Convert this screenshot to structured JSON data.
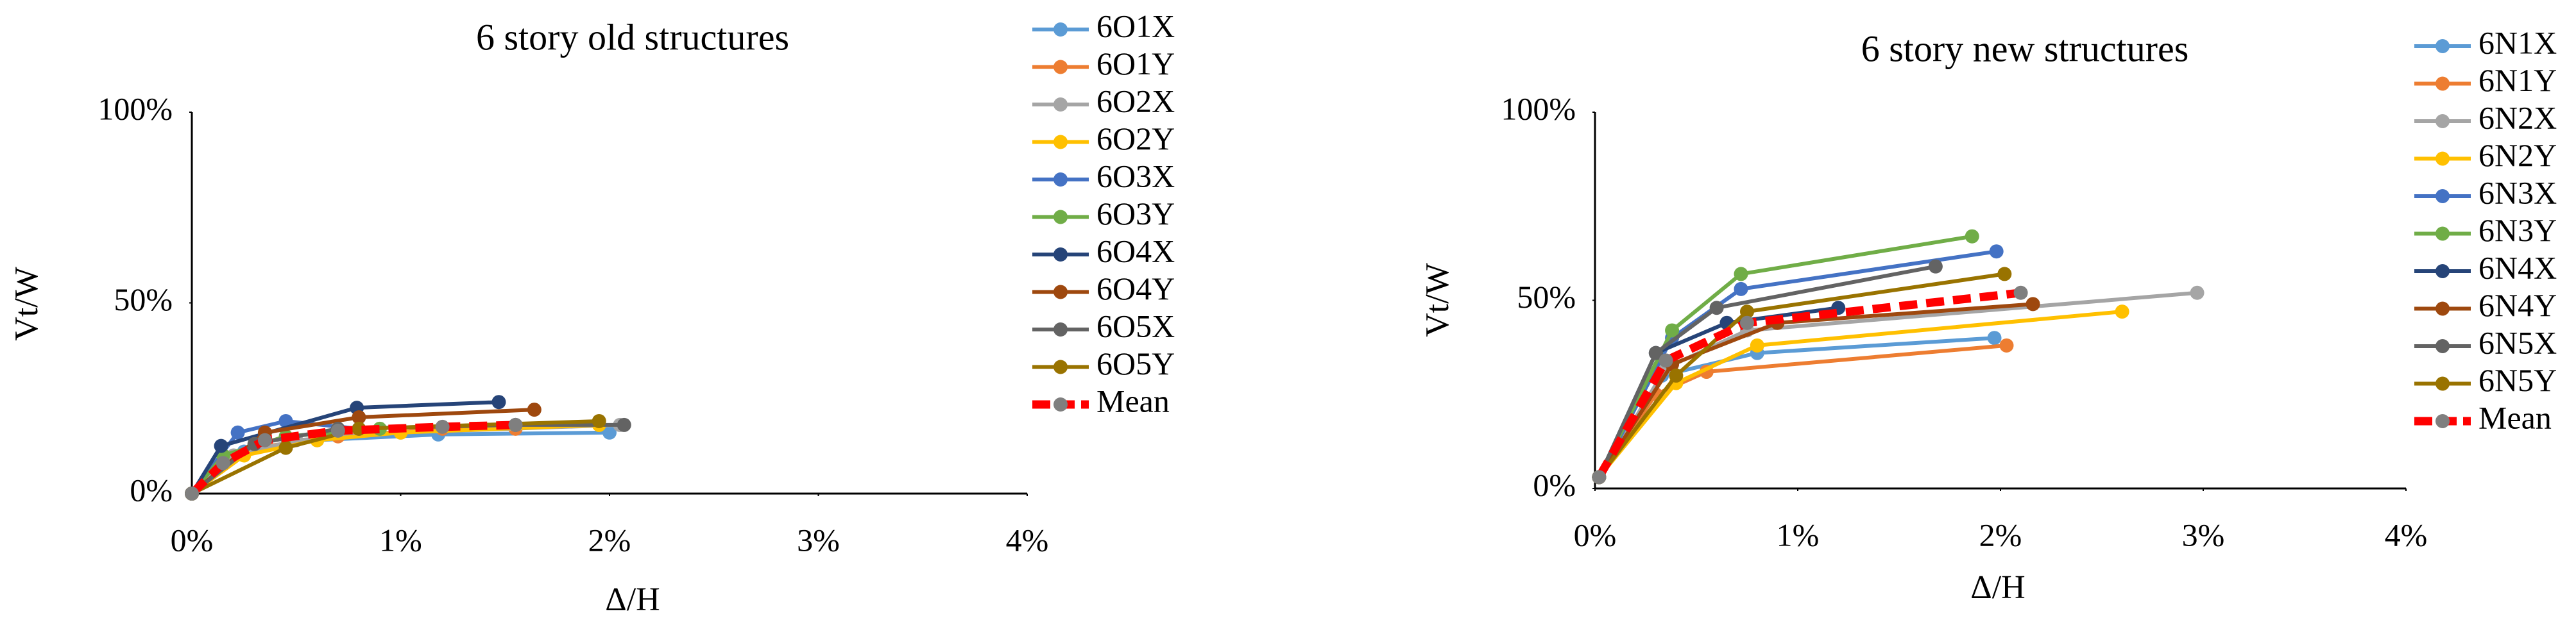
{
  "chart_data": [
    {
      "type": "line",
      "title": "6 story old structures",
      "x_label": "Δ/H",
      "y_label": "Vt/W",
      "xlim": [
        0,
        4
      ],
      "xticks": [
        {
          "value": 0,
          "label": "0%"
        },
        {
          "value": 1,
          "label": "1%"
        },
        {
          "value": 2,
          "label": "2%"
        },
        {
          "value": 3,
          "label": "3%"
        },
        {
          "value": 4,
          "label": "4%"
        }
      ],
      "ylim": [
        0,
        100
      ],
      "yticks": [
        {
          "value": 0,
          "label": "0%"
        },
        {
          "value": 50,
          "label": "50%"
        },
        {
          "value": 100,
          "label": "100%"
        }
      ],
      "legend": "right",
      "series": [
        {
          "name": "6O1X",
          "color": "#5b9bd5",
          "x": [
            0,
            0.25,
            0.6,
            1.18,
            2.0
          ],
          "values": [
            0,
            11,
            14,
            15.5,
            16
          ]
        },
        {
          "name": "6O1Y",
          "color": "#ed7d31",
          "x": [
            0,
            0.3,
            0.7,
            1.2,
            1.55
          ],
          "values": [
            0,
            12,
            15,
            17,
            17
          ]
        },
        {
          "name": "6O2X",
          "color": "#a5a5a5",
          "x": [
            0,
            0.2,
            0.5,
            1.0,
            2.05
          ],
          "values": [
            0,
            10,
            14,
            16,
            18
          ]
        },
        {
          "name": "6O2Y",
          "color": "#ffc000",
          "x": [
            0,
            0.25,
            0.6,
            1.0,
            1.95
          ],
          "values": [
            0,
            10,
            14,
            16,
            18
          ]
        },
        {
          "name": "6O3X",
          "color": "#4472c4",
          "x": [
            0,
            0.22,
            0.45,
            0.8
          ],
          "values": [
            0,
            16,
            19,
            17
          ]
        },
        {
          "name": "6O3Y",
          "color": "#70ad47",
          "x": [
            0,
            0.15,
            0.45,
            0.9
          ],
          "values": [
            0,
            10,
            15,
            17
          ]
        },
        {
          "name": "6O4X",
          "color": "#264478",
          "x": [
            0,
            0.14,
            0.79,
            1.47
          ],
          "values": [
            0,
            12.5,
            22.5,
            24
          ]
        },
        {
          "name": "6O4Y",
          "color": "#9e480e",
          "x": [
            0,
            0.35,
            0.8,
            1.64
          ],
          "values": [
            0,
            16,
            20,
            22
          ]
        },
        {
          "name": "6O5X",
          "color": "#636363",
          "x": [
            0,
            0.3,
            0.7,
            1.55,
            2.07
          ],
          "values": [
            0,
            13,
            17,
            18,
            18
          ]
        },
        {
          "name": "6O5Y",
          "color": "#997300",
          "x": [
            0,
            0.45,
            0.8,
            1.95
          ],
          "values": [
            0,
            12,
            17,
            19
          ]
        },
        {
          "name": "Mean",
          "color": "#ff0000",
          "marker_color": "#7f7f7f",
          "dashed": true,
          "x": [
            0,
            0.15,
            0.35,
            0.7,
            1.2,
            1.55
          ],
          "values": [
            0,
            8,
            14,
            16.5,
            17.5,
            18
          ]
        }
      ]
    },
    {
      "type": "line",
      "title": "6 story new structures",
      "x_label": "Δ/H",
      "y_label": "Vt/W",
      "xlim": [
        0,
        4
      ],
      "xticks": [
        {
          "value": 0,
          "label": "0%"
        },
        {
          "value": 1,
          "label": "1%"
        },
        {
          "value": 2,
          "label": "2%"
        },
        {
          "value": 3,
          "label": "3%"
        },
        {
          "value": 4,
          "label": "4%"
        }
      ],
      "ylim": [
        0,
        100
      ],
      "yticks": [
        {
          "value": 0,
          "label": "0%"
        },
        {
          "value": 50,
          "label": "50%"
        },
        {
          "value": 100,
          "label": "100%"
        }
      ],
      "legend": "right",
      "series": [
        {
          "name": "6N1X",
          "color": "#5b9bd5",
          "x": [
            0.02,
            0.33,
            0.8,
            1.97
          ],
          "values": [
            3,
            30,
            36,
            40
          ]
        },
        {
          "name": "6N1Y",
          "color": "#ed7d31",
          "x": [
            0.02,
            0.3,
            0.55,
            2.03
          ],
          "values": [
            3,
            25,
            31,
            38
          ]
        },
        {
          "name": "6N2X",
          "color": "#a5a5a5",
          "x": [
            0.02,
            0.35,
            0.75,
            2.97
          ],
          "values": [
            3,
            32,
            42,
            52
          ]
        },
        {
          "name": "6N2Y",
          "color": "#ffc000",
          "x": [
            0.02,
            0.4,
            0.8,
            2.6
          ],
          "values": [
            3,
            28,
            38,
            47
          ]
        },
        {
          "name": "6N3X",
          "color": "#4472c4",
          "x": [
            0.02,
            0.38,
            0.72,
            1.98
          ],
          "values": [
            3,
            40,
            53,
            63
          ]
        },
        {
          "name": "6N3Y",
          "color": "#70ad47",
          "x": [
            0.02,
            0.38,
            0.72,
            1.86
          ],
          "values": [
            3,
            42,
            57,
            67
          ]
        },
        {
          "name": "6N4X",
          "color": "#264478",
          "x": [
            0.02,
            0.3,
            0.65,
            1.2
          ],
          "values": [
            3,
            36,
            44,
            48
          ]
        },
        {
          "name": "6N4Y",
          "color": "#9e480e",
          "x": [
            0.02,
            0.38,
            0.9,
            2.16
          ],
          "values": [
            3,
            33,
            44,
            49
          ]
        },
        {
          "name": "6N5X",
          "color": "#636363",
          "x": [
            0.02,
            0.3,
            0.6,
            1.68
          ],
          "values": [
            3,
            36,
            48,
            59
          ]
        },
        {
          "name": "6N5Y",
          "color": "#997300",
          "x": [
            0.02,
            0.4,
            0.75,
            2.02
          ],
          "values": [
            3,
            30,
            47,
            57
          ]
        },
        {
          "name": "Mean",
          "color": "#ff0000",
          "marker_color": "#7f7f7f",
          "dashed": true,
          "x": [
            0.02,
            0.35,
            0.75,
            2.1
          ],
          "values": [
            3,
            34,
            44,
            52
          ]
        }
      ]
    }
  ]
}
